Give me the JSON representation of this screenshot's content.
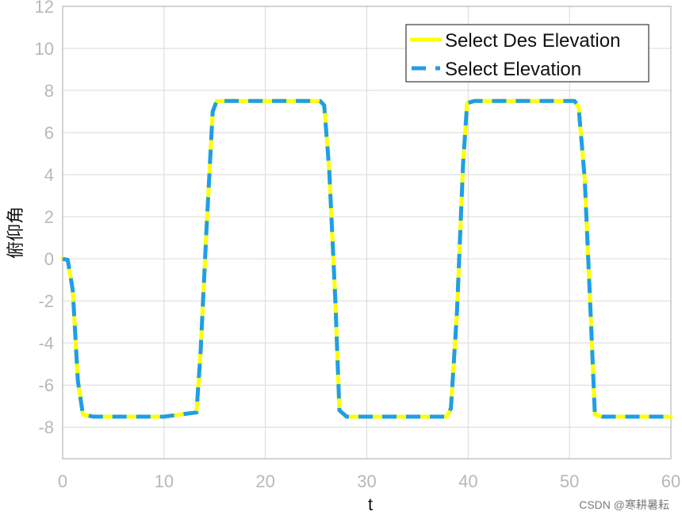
{
  "chart_data": {
    "type": "line",
    "title": "",
    "xlabel": "t",
    "ylabel": "俯仰角",
    "xlim": [
      0,
      60
    ],
    "ylim": [
      -9.5,
      12
    ],
    "grid": true,
    "legend_position": "top-right",
    "x_ticks": [
      0,
      10,
      20,
      30,
      40,
      50,
      60
    ],
    "y_ticks": [
      -8,
      -6,
      -4,
      -2,
      0,
      2,
      4,
      6,
      8,
      10,
      12
    ],
    "series": [
      {
        "name": "Select Des Elevation",
        "color": "#ffff00",
        "line_style": "solid",
        "x": [
          0,
          0.5,
          1,
          1.5,
          2,
          3,
          5,
          10,
          13.2,
          13.6,
          14.2,
          14.8,
          15.2,
          16,
          20,
          25.4,
          25.8,
          26.3,
          26.9,
          27.3,
          28,
          32,
          37.9,
          38.3,
          38.9,
          39.5,
          39.9,
          40.6,
          45,
          50.5,
          50.9,
          51.5,
          52.1,
          52.5,
          53.2,
          60
        ],
        "y": [
          0,
          -0.05,
          -1.5,
          -5.8,
          -7.4,
          -7.5,
          -7.5,
          -7.5,
          -7.3,
          -4.5,
          1.5,
          7,
          7.5,
          7.5,
          7.5,
          7.5,
          7.3,
          4.2,
          -2,
          -7.2,
          -7.5,
          -7.5,
          -7.5,
          -7.1,
          -2.5,
          4.5,
          7.4,
          7.5,
          7.5,
          7.5,
          7.2,
          3.8,
          -2.8,
          -7.4,
          -7.5,
          -7.5
        ]
      },
      {
        "name": "Select Elevation",
        "color": "#1f9ee8",
        "line_style": "dashed",
        "x": [
          0,
          0.5,
          1,
          1.5,
          2,
          3,
          5,
          10,
          13.2,
          13.6,
          14.2,
          14.8,
          15.2,
          16,
          20,
          25.4,
          25.8,
          26.3,
          26.9,
          27.3,
          28,
          32,
          37.9,
          38.3,
          38.9,
          39.5,
          39.9,
          40.6,
          45,
          50.5,
          50.9,
          51.5,
          52.1,
          52.5,
          53.2,
          60
        ],
        "y": [
          0,
          -0.05,
          -1.5,
          -5.8,
          -7.4,
          -7.5,
          -7.5,
          -7.5,
          -7.3,
          -4.5,
          1.5,
          7,
          7.5,
          7.5,
          7.5,
          7.5,
          7.3,
          4.2,
          -2,
          -7.2,
          -7.5,
          -7.5,
          -7.5,
          -7.1,
          -2.5,
          4.5,
          7.4,
          7.5,
          7.5,
          7.5,
          7.2,
          3.8,
          -2.8,
          -7.4,
          -7.5,
          -7.5
        ]
      }
    ]
  },
  "watermark": {
    "text": "CSDN @寒耕暑耘"
  }
}
